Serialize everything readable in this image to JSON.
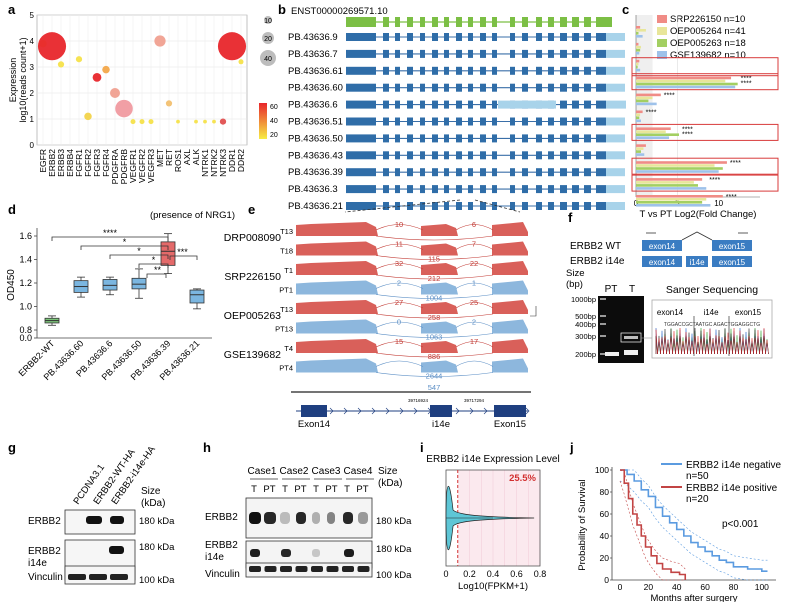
{
  "panel_letters": [
    "a",
    "b",
    "c",
    "d",
    "e",
    "f",
    "g",
    "h",
    "i",
    "j"
  ],
  "chart_data": [
    {
      "panel": "a",
      "type": "scatter",
      "ylabel": "Expression\nlog10(reads count+1)",
      "ylim": [
        0,
        5
      ],
      "yticks": [
        "0",
        "1",
        "2",
        "3",
        "4",
        "5"
      ],
      "categories": [
        "EGFR",
        "ERBB2",
        "ERBB3",
        "ERBB4",
        "FGFR1",
        "FGFR2",
        "FGFR3",
        "FGFR4",
        "PDGFRA",
        "PDGFRB",
        "VEGFR1",
        "VEGFR2",
        "VEGFR3",
        "MET",
        "RET",
        "ROS1",
        "AXL",
        "ALK",
        "NTRK1",
        "NTRK2",
        "NTRK3",
        "DDR1",
        "DDR2"
      ],
      "points": [
        {
          "cat": "EGFR",
          "y": 3.9,
          "size": 12,
          "color": "#f2d34a"
        },
        {
          "cat": "ERBB2",
          "y": 3.8,
          "size": 45,
          "color": "#e8262b"
        },
        {
          "cat": "ERBB3",
          "y": 3.1,
          "size": 10,
          "color": "#f6e24a"
        },
        {
          "cat": "FGFR1",
          "y": 3.3,
          "size": 10,
          "color": "#f6e24a"
        },
        {
          "cat": "FGFR3",
          "y": 2.6,
          "size": 14,
          "color": "#e8262b"
        },
        {
          "cat": "FGFR2",
          "y": 1.1,
          "size": 12,
          "color": "#f2d34a"
        },
        {
          "cat": "FGFR4",
          "y": 2.9,
          "size": 12,
          "color": "#f3a84a"
        },
        {
          "cat": "PDGFRA",
          "y": 2.0,
          "size": 16,
          "color": "#f0a090"
        },
        {
          "cat": "PDGFRB",
          "y": 1.4,
          "size": 28,
          "color": "#f09aa0"
        },
        {
          "cat": "VEGFR1",
          "y": 0.9,
          "size": 8,
          "color": "#f6e24a"
        },
        {
          "cat": "VEGFR2",
          "y": 0.9,
          "size": 8,
          "color": "#f6e24a"
        },
        {
          "cat": "VEGFR3",
          "y": 0.9,
          "size": 8,
          "color": "#f6e24a"
        },
        {
          "cat": "MET",
          "y": 4.0,
          "size": 18,
          "color": "#f0a090"
        },
        {
          "cat": "RET",
          "y": 1.6,
          "size": 10,
          "color": "#f2c070"
        },
        {
          "cat": "ROS1",
          "y": 0.9,
          "size": 6,
          "color": "#f6e24a"
        },
        {
          "cat": "ALK",
          "y": 0.9,
          "size": 6,
          "color": "#f6e24a"
        },
        {
          "cat": "NTRK1",
          "y": 0.9,
          "size": 6,
          "color": "#f6e24a"
        },
        {
          "cat": "NTRK2",
          "y": 0.9,
          "size": 6,
          "color": "#f6e24a"
        },
        {
          "cat": "NTRK3",
          "y": 0.9,
          "size": 10,
          "color": "#e05050"
        },
        {
          "cat": "DDR1",
          "y": 3.8,
          "size": 45,
          "color": "#e8262b"
        },
        {
          "cat": "DDR2",
          "y": 3.2,
          "size": 8,
          "color": "#f6e24a"
        }
      ],
      "size_legend": [
        "10",
        "20",
        "40"
      ],
      "color_legend": [
        "60",
        "40",
        "20"
      ]
    },
    {
      "panel": "c",
      "type": "bar",
      "xlabel": "T vs PT Log2(Fold Change)",
      "xticks": [
        "0",
        "5",
        "10"
      ],
      "xlim": [
        0,
        15
      ],
      "legend": [
        {
          "name": "SRP226150 n=10",
          "color": "#f08c86"
        },
        {
          "name": "OEP005264 n=41",
          "color": "#e8e69a"
        },
        {
          "name": "OEP005263 n=18",
          "color": "#a3cf62"
        },
        {
          "name": "GSE139682 n=10",
          "color": "#9ec2ea"
        }
      ],
      "rows": [
        {
          "isoform": "PB.43636.9",
          "values": [
            0.5,
            1.2,
            0.3,
            0.8
          ],
          "sig": ""
        },
        {
          "isoform": "PB.43636.7",
          "values": [
            0.3,
            0.6,
            0.5,
            0.4
          ],
          "sig": ""
        },
        {
          "isoform": "PB.43636.61",
          "values": [
            0.4,
            0.3,
            0.2,
            0.5
          ],
          "sig": ""
        },
        {
          "isoform": "PB.43636.60",
          "values": [
            11.5,
            10.8,
            12.3,
            12.0
          ],
          "sig": "**** ****"
        },
        {
          "isoform": "PB.43636.6",
          "values": [
            3.0,
            2.0,
            1.5,
            2.5
          ],
          "sig": "****"
        },
        {
          "isoform": "PB.43636.51",
          "values": [
            0.8,
            0.5,
            0.4,
            0.6
          ],
          "sig": "****"
        },
        {
          "isoform": "PB.43636.50",
          "values": [
            4.2,
            3.6,
            5.2,
            4.0
          ],
          "sig": "**** ****"
        },
        {
          "isoform": "PB.43636.43",
          "values": [
            1.2,
            0.9,
            0.6,
            1.0
          ],
          "sig": ""
        },
        {
          "isoform": "PB.43636.39",
          "values": [
            11.0,
            9.5,
            10.5,
            10.0
          ],
          "sig": "****"
        },
        {
          "isoform": "PB.43636.3",
          "values": [
            8.0,
            7.0,
            7.5,
            8.5
          ],
          "sig": "****"
        },
        {
          "isoform": "PB.43636.21",
          "values": [
            10.5,
            8.5,
            8.0,
            9.0
          ],
          "sig": "****"
        }
      ]
    },
    {
      "panel": "d",
      "type": "box",
      "note": "(presence of NRG1)",
      "ylabel": "OD450",
      "yticks": [
        "0.0",
        "0.8",
        "1.0",
        "1.2",
        "1.4",
        "1.6"
      ],
      "categories": [
        "ERBB2-WT",
        "PB.43636.60",
        "PB.43636.6",
        "PB.43636.50",
        "PB.43636.39",
        "PB.43636.21"
      ],
      "boxes": [
        {
          "min": 0.84,
          "q1": 0.86,
          "med": 0.88,
          "q3": 0.9,
          "max": 0.92,
          "color": "#7cc47a"
        },
        {
          "min": 1.08,
          "q1": 1.12,
          "med": 1.17,
          "q3": 1.22,
          "max": 1.25,
          "color": "#7bb6e0"
        },
        {
          "min": 1.1,
          "q1": 1.14,
          "med": 1.18,
          "q3": 1.23,
          "max": 1.25,
          "color": "#7bb6e0"
        },
        {
          "min": 1.07,
          "q1": 1.15,
          "med": 1.19,
          "q3": 1.24,
          "max": 1.32,
          "color": "#7bb6e0"
        },
        {
          "min": 1.28,
          "q1": 1.35,
          "med": 1.47,
          "q3": 1.55,
          "max": 1.62,
          "color": "#e46a6a"
        },
        {
          "min": 0.98,
          "q1": 1.03,
          "med": 1.1,
          "q3": 1.14,
          "max": 1.15,
          "color": "#7bb6e0"
        }
      ],
      "sig_labels": [
        "****",
        "*",
        "*",
        "*",
        "**",
        "***"
      ]
    },
    {
      "panel": "i",
      "type": "violin",
      "title": "ERBB2 i14e Expression Level",
      "xlabel": "Log10(FPKM+1)",
      "xticks": [
        "0",
        "0.2",
        "0.4",
        "0.6",
        "0.8"
      ],
      "xlim": [
        0,
        0.8
      ],
      "cutoff": 0.1,
      "annotation": "25.5%"
    },
    {
      "panel": "j",
      "type": "line",
      "ylabel": "Probability of Survival",
      "xlabel": "Months after surgery",
      "yticks": [
        "0",
        "20",
        "40",
        "60",
        "80",
        "100"
      ],
      "xticks": [
        "0",
        "20",
        "40",
        "60",
        "80",
        "100"
      ],
      "ylim": [
        0,
        100
      ],
      "xlim": [
        0,
        110
      ],
      "pvalue": "p<0.001",
      "series": [
        {
          "name": "ERBB2 i14e negative\nn=50",
          "color": "#5b9be0",
          "x": [
            0,
            5,
            10,
            15,
            20,
            25,
            30,
            35,
            40,
            45,
            50,
            55,
            60,
            65,
            70,
            75,
            80,
            90,
            100,
            104
          ],
          "y": [
            100,
            96,
            90,
            82,
            76,
            66,
            58,
            52,
            46,
            40,
            34,
            30,
            26,
            22,
            18,
            16,
            12,
            10,
            8,
            8
          ]
        },
        {
          "name": "ERBB2 i14e positive\nn=20",
          "color": "#c24444",
          "x": [
            0,
            3,
            6,
            9,
            12,
            15,
            18,
            22,
            26,
            30,
            36,
            42,
            46
          ],
          "y": [
            100,
            88,
            74,
            60,
            50,
            40,
            30,
            22,
            15,
            10,
            7,
            5,
            0
          ]
        }
      ]
    }
  ],
  "panel_b": {
    "reference": "ENST00000269571.10",
    "isoforms": [
      "PB.43636.9",
      "PB.43636.7",
      "PB.43636.61",
      "PB.43636.60",
      "PB.43636.6",
      "PB.43636.51",
      "PB.43636.50",
      "PB.43636.43",
      "PB.43636.39",
      "PB.43636.3",
      "PB.43636.21"
    ]
  },
  "panel_e": {
    "datasets": [
      {
        "name": "DRP008090",
        "tracks": [
          {
            "label": "T13",
            "left": "10",
            "mid": "",
            "right": "6",
            "type": "T"
          },
          {
            "label": "T18",
            "left": "11",
            "mid": "115",
            "right": "7",
            "type": "T"
          }
        ]
      },
      {
        "name": "SRP226150",
        "tracks": [
          {
            "label": "T1",
            "left": "32",
            "mid": "212",
            "right": "22",
            "type": "T"
          },
          {
            "label": "PT1",
            "left": "2",
            "mid": "1004",
            "right": "1",
            "type": "PT"
          }
        ]
      },
      {
        "name": "OEP005263",
        "tracks": [
          {
            "label": "T13",
            "left": "27",
            "mid": "258",
            "right": "25",
            "type": "T"
          },
          {
            "label": "PT13",
            "left": "0",
            "mid": "1063",
            "right": "2",
            "type": "PT"
          }
        ]
      },
      {
        "name": "GSE139682",
        "tracks": [
          {
            "label": "T4",
            "left": "15",
            "mid": "886",
            "right": "17",
            "type": "T"
          },
          {
            "label": "PT4",
            "left": "",
            "mid": "2644",
            "right": "",
            "type": "PT"
          }
        ]
      }
    ],
    "extra_junction": "547",
    "coords": [
      "39716924",
      "39717294"
    ],
    "exons": [
      "Exon14",
      "i14e",
      "Exon15"
    ]
  },
  "panel_f": {
    "constructs": [
      "ERBB2 WT",
      "ERBB2 i14e"
    ],
    "exon_labels": [
      "exon14",
      "exon15",
      "exon14",
      "i14e",
      "exon15"
    ],
    "size_title": "Size\n(bp)",
    "ladder": [
      "1000bp",
      "500bp",
      "400bp",
      "300bp",
      "200bp"
    ],
    "lanes": [
      "PT",
      "T"
    ],
    "sanger_title": "Sanger Sequencing",
    "sanger_labels": [
      "exon14",
      "i14e",
      "exon15"
    ],
    "sanger_seq": "TGGACCGCTAATGC AGACTGGAGGCTG"
  },
  "panel_g": {
    "lanes": [
      "PCDNA3.1",
      "ERBB2-WT-HA",
      "ERBB2-i14e-HA"
    ],
    "size_title": "Size\n(kDa)",
    "rows": [
      {
        "label": "ERBB2",
        "size": "180 kDa"
      },
      {
        "label": "ERBB2\ni14e",
        "size": "180 kDa"
      },
      {
        "label": "Vinculin",
        "size": "100 kDa"
      }
    ]
  },
  "panel_h": {
    "cases": [
      "Case1",
      "Case2",
      "Case3",
      "Case4"
    ],
    "lanes": [
      "T",
      "PT",
      "T",
      "PT",
      "T",
      "PT",
      "T",
      "PT"
    ],
    "size_title": "Size\n(kDa)",
    "rows": [
      {
        "label": "ERBB2",
        "size": "180 kDa"
      },
      {
        "label": "ERBB2\ni14e",
        "size": "180 kDa"
      },
      {
        "label": "Vinculin",
        "size": "100 kDa"
      }
    ]
  }
}
